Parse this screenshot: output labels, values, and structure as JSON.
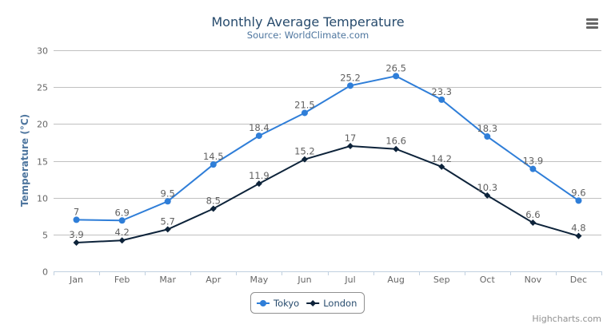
{
  "chart_data": {
    "type": "line",
    "title": "Monthly Average Temperature",
    "subtitle": "Source: WorldClimate.com",
    "xlabel": "",
    "ylabel": "Temperature (°C)",
    "categories": [
      "Jan",
      "Feb",
      "Mar",
      "Apr",
      "May",
      "Jun",
      "Jul",
      "Aug",
      "Sep",
      "Oct",
      "Nov",
      "Dec"
    ],
    "ylim": [
      0,
      30
    ],
    "yticks": [
      0,
      5,
      10,
      15,
      20,
      25,
      30
    ],
    "grid": true,
    "legend": "bottom-center",
    "data_labels": true,
    "series": [
      {
        "name": "Tokyo",
        "color": "#2f7ed8",
        "marker": "circle",
        "values": [
          7.0,
          6.9,
          9.5,
          14.5,
          18.4,
          21.5,
          25.2,
          26.5,
          23.3,
          18.3,
          13.9,
          9.6
        ]
      },
      {
        "name": "London",
        "color": "#0d233a",
        "marker": "diamond",
        "values": [
          3.9,
          4.2,
          5.7,
          8.5,
          11.9,
          15.2,
          17.0,
          16.6,
          14.2,
          10.3,
          6.6,
          4.8
        ]
      }
    ]
  },
  "credits": "Highcharts.com",
  "menu_icon": "hamburger-menu-icon"
}
